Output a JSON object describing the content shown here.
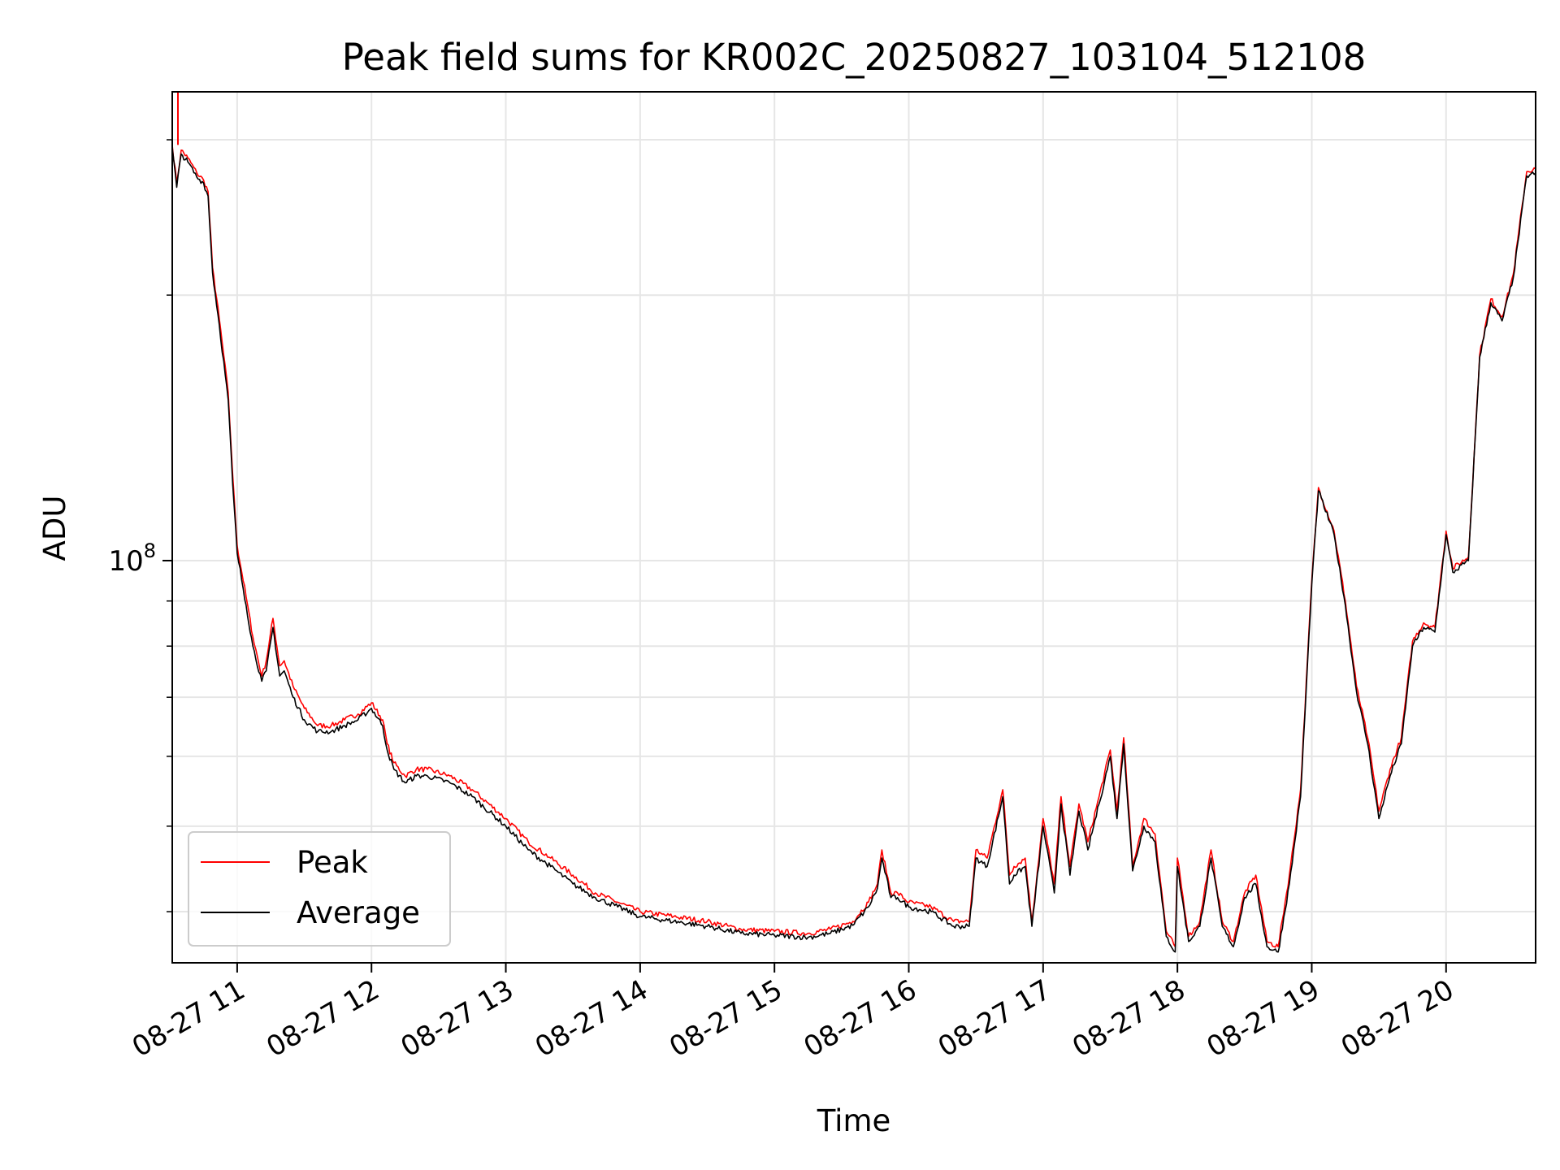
{
  "chart_data": {
    "type": "line",
    "title": "Peak field sums for KR002C_20250827_103104_512108",
    "xlabel": "Time",
    "ylabel": "ADU",
    "yscale": "log",
    "xlim": [
      "08-27 10:31",
      "08-27 20:40"
    ],
    "ylim": [
      35000000,
      340000000
    ],
    "grid": true,
    "legend_position": "lower-left",
    "x_ticks": [
      "08-27 11",
      "08-27 12",
      "08-27 13",
      "08-27 14",
      "08-27 15",
      "08-27 16",
      "08-27 17",
      "08-27 18",
      "08-27 19",
      "08-27 20"
    ],
    "y_major_ticks": [
      {
        "value": 100000000,
        "label": "10^8"
      }
    ],
    "y_minor_ticks": [
      40000000,
      50000000,
      60000000,
      70000000,
      80000000,
      90000000,
      200000000,
      300000000
    ],
    "x": [
      "10:31",
      "10:33",
      "10:35",
      "10:38",
      "10:42",
      "10:45",
      "10:47",
      "10:49",
      "10:52",
      "10:56",
      "10:58",
      "11:00",
      "11:04",
      "11:07",
      "11:11",
      "11:13",
      "11:16",
      "11:19",
      "11:21",
      "11:25",
      "11:30",
      "11:36",
      "11:42",
      "11:48",
      "11:54",
      "12:00",
      "12:05",
      "12:07",
      "12:10",
      "12:15",
      "12:20",
      "12:25",
      "12:35",
      "12:45",
      "13:00",
      "13:10",
      "13:20",
      "13:30",
      "13:40",
      "13:50",
      "14:00",
      "14:15",
      "14:30",
      "14:45",
      "15:00",
      "15:15",
      "15:25",
      "15:35",
      "15:42",
      "15:46",
      "15:48",
      "15:52",
      "15:55",
      "16:00",
      "16:10",
      "16:20",
      "16:27",
      "16:30",
      "16:35",
      "16:42",
      "16:45",
      "16:47",
      "16:52",
      "16:55",
      "17:00",
      "17:05",
      "17:08",
      "17:12",
      "17:16",
      "17:20",
      "17:25",
      "17:30",
      "17:33",
      "17:36",
      "17:40",
      "17:45",
      "17:50",
      "17:55",
      "17:59",
      "18:00",
      "18:05",
      "18:10",
      "18:15",
      "18:20",
      "18:25",
      "18:30",
      "18:35",
      "18:40",
      "18:45",
      "18:50",
      "18:55",
      "19:00",
      "19:03",
      "19:10",
      "19:15",
      "19:20",
      "19:25",
      "19:30",
      "19:35",
      "19:40",
      "19:45",
      "19:50",
      "19:55",
      "20:00",
      "20:03",
      "20:10",
      "20:15",
      "20:20",
      "20:25",
      "20:30",
      "20:36",
      "20:40"
    ],
    "series": [
      {
        "name": "Peak",
        "color": "#ff0000",
        "values": [
          296000000,
          268000000,
          292000000,
          286000000,
          275000000,
          270000000,
          262000000,
          215000000,
          188000000,
          155000000,
          125000000,
          104000000,
          91000000,
          82000000,
          74000000,
          77000000,
          86000000,
          76000000,
          77000000,
          72000000,
          68000000,
          65000000,
          65000000,
          66000000,
          67000000,
          69000000,
          66000000,
          62000000,
          59000000,
          57000000,
          58000000,
          58000000,
          57000000,
          55000000,
          51000000,
          48000000,
          46000000,
          44000000,
          42000000,
          41000000,
          40000000,
          39500000,
          39000000,
          38200000,
          38000000,
          37800000,
          38200000,
          39000000,
          41000000,
          43000000,
          47000000,
          42000000,
          42000000,
          41000000,
          40500000,
          39000000,
          39000000,
          47000000,
          46000000,
          55000000,
          44000000,
          45000000,
          46000000,
          39000000,
          51000000,
          43000000,
          54000000,
          45000000,
          53000000,
          48000000,
          54000000,
          61000000,
          52000000,
          63000000,
          45000000,
          51000000,
          49000000,
          38000000,
          36500000,
          46000000,
          37500000,
          39000000,
          47000000,
          39000000,
          37000000,
          42000000,
          44000000,
          37000000,
          36500000,
          44000000,
          55000000,
          95000000,
          121000000,
          108000000,
          90000000,
          72000000,
          63000000,
          52000000,
          58000000,
          63000000,
          81000000,
          85000000,
          84000000,
          108000000,
          98000000,
          101000000,
          171000000,
          198000000,
          189000000,
          211000000,
          276000000,
          278000000
        ]
      },
      {
        "name": "Average",
        "color": "#000000",
        "values": [
          294000000,
          265000000,
          289000000,
          283000000,
          272000000,
          268000000,
          259000000,
          212000000,
          185000000,
          152000000,
          122000000,
          102000000,
          89000000,
          80000000,
          73000000,
          75000000,
          84000000,
          74000000,
          75000000,
          70000000,
          66000000,
          64000000,
          64000000,
          65000000,
          66000000,
          68000000,
          65000000,
          61000000,
          58000000,
          56000000,
          57000000,
          57000000,
          56000000,
          54000000,
          50000000,
          47000000,
          45000000,
          43000000,
          41500000,
          40500000,
          39500000,
          39000000,
          38500000,
          37800000,
          37600000,
          37400000,
          37800000,
          38600000,
          40500000,
          42500000,
          46000000,
          41500000,
          41500000,
          40500000,
          40000000,
          38500000,
          38500000,
          46000000,
          45000000,
          54000000,
          43000000,
          44000000,
          45000000,
          38500000,
          50000000,
          42000000,
          53000000,
          44000000,
          52000000,
          47000000,
          53000000,
          60000000,
          51000000,
          62000000,
          44500000,
          50000000,
          48000000,
          37500000,
          36000000,
          45000000,
          37000000,
          38500000,
          46000000,
          38500000,
          36500000,
          41500000,
          43000000,
          36500000,
          36000000,
          43000000,
          54000000,
          94000000,
          120000000,
          107000000,
          89000000,
          71000000,
          62000000,
          51000000,
          57000000,
          62000000,
          80000000,
          84000000,
          83000000,
          107000000,
          97000000,
          100000000,
          170000000,
          196000000,
          187000000,
          209000000,
          273000000,
          275000000
        ]
      }
    ]
  }
}
